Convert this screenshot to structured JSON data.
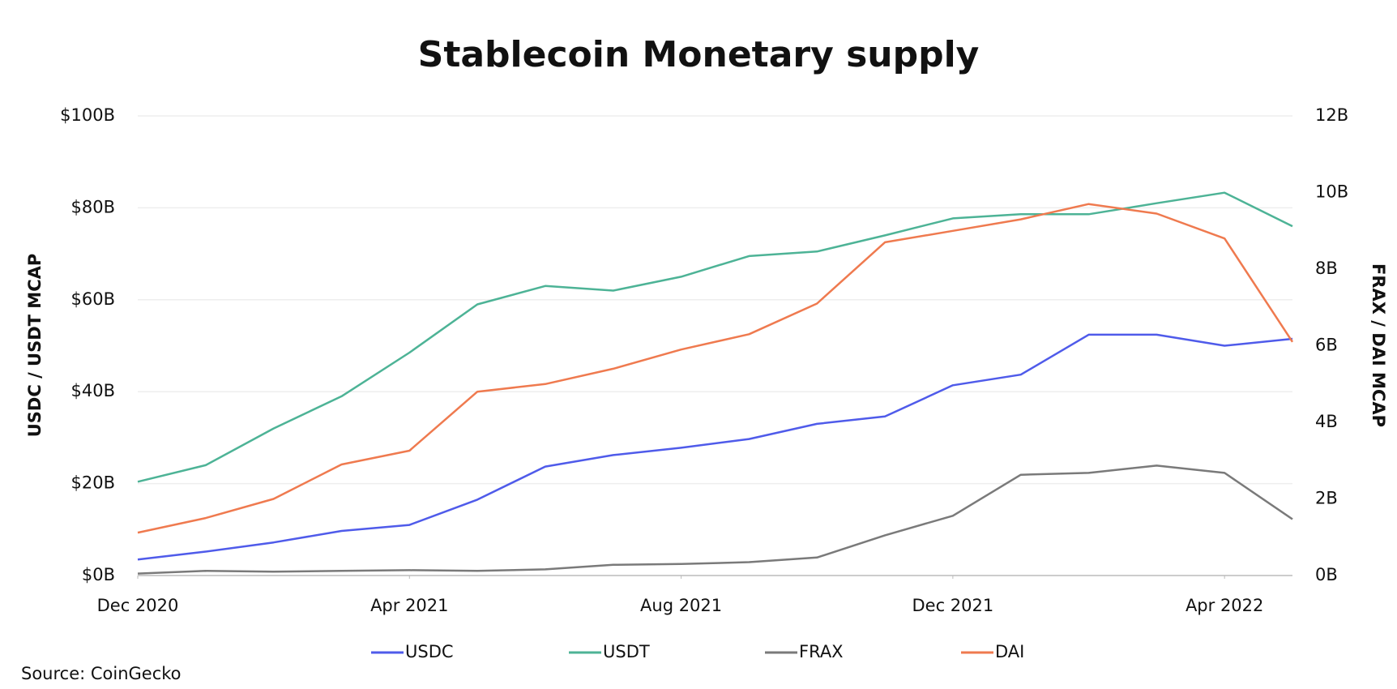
{
  "chart_data": {
    "type": "line",
    "title": "Stablecoin Monetary supply",
    "ylabel": "USDC / USDT MCAP",
    "y2label": "FRAX / DAI MCAP",
    "source": "Source: CoinGecko",
    "x": [
      "Dec 2020",
      "Jan 2021",
      "Feb 2021",
      "Mar 2021",
      "Apr 2021",
      "May 2021",
      "Jun 2021",
      "Jul 2021",
      "Aug 2021",
      "Sep 2021",
      "Oct 2021",
      "Nov 2021",
      "Dec 2021",
      "Jan 2022",
      "Feb 2022",
      "Mar 2022",
      "Apr 2022",
      "May 2022"
    ],
    "xticks": [
      "Dec 2020",
      "Apr 2021",
      "Aug 2021",
      "Dec 2021",
      "Apr 2022"
    ],
    "ylim": [
      0,
      100
    ],
    "yticks": [
      {
        "value": 0,
        "label": "$0B"
      },
      {
        "value": 20,
        "label": "$20B"
      },
      {
        "value": 40,
        "label": "$40B"
      },
      {
        "value": 60,
        "label": "$60B"
      },
      {
        "value": 80,
        "label": "$80B"
      },
      {
        "value": 100,
        "label": "$100B"
      }
    ],
    "y2lim": [
      0,
      12
    ],
    "y2ticks": [
      {
        "value": 0,
        "label": "0B"
      },
      {
        "value": 2,
        "label": "2B"
      },
      {
        "value": 4,
        "label": "4B"
      },
      {
        "value": 6,
        "label": "6B"
      },
      {
        "value": 8,
        "label": "8B"
      },
      {
        "value": 10,
        "label": "10B"
      },
      {
        "value": 12,
        "label": "12B"
      }
    ],
    "grid": true,
    "legend": "bottom",
    "series": [
      {
        "name": "USDC",
        "color": "#4f5bea",
        "values": [
          3.5,
          5.2,
          7.2,
          9.7,
          11,
          16.5,
          23.7,
          26.2,
          27.8,
          29.7,
          33,
          34.6,
          41.4,
          43.7,
          52.4,
          52.4,
          50,
          51.5
        ]
      },
      {
        "name": "USDT",
        "color": "#4db396",
        "values": [
          20.4,
          24,
          32,
          39,
          48.5,
          59,
          63,
          62,
          65,
          69.5,
          70.5,
          74,
          77.7,
          78.6,
          78.6,
          81,
          83.3,
          76
        ]
      },
      {
        "name": "FRAX",
        "color": "#7a7a7a",
        "axis": "y2",
        "values": [
          0.05,
          0.12,
          0.1,
          0.12,
          0.14,
          0.12,
          0.16,
          0.28,
          0.3,
          0.35,
          0.47,
          1.05,
          1.56,
          2.63,
          2.68,
          2.87,
          2.68,
          1.47
        ]
      },
      {
        "name": "DAI",
        "color": "#ef7a4f",
        "axis": "y2",
        "values": [
          1.12,
          1.5,
          2.0,
          2.9,
          3.26,
          4.8,
          5.0,
          5.4,
          5.9,
          6.3,
          7.1,
          8.7,
          9.0,
          9.3,
          9.7,
          9.45,
          8.8,
          6.1
        ]
      }
    ]
  }
}
